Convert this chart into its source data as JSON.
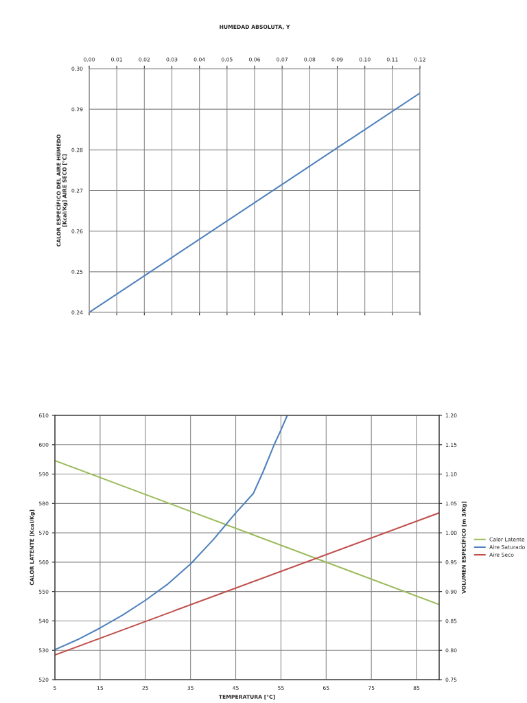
{
  "chart_data": [
    {
      "type": "line",
      "xlabel": "HUMEDAD ABSOLUTA, Y",
      "ylabel": "CALOR ESPECÍFICO DEL AIRE HÚMEDO\n[Kcal/Kg] AIRE SECO [°C]",
      "xlim": [
        0,
        0.12
      ],
      "xticks": [
        {
          "value": 0,
          "label": "0.00"
        },
        0.01,
        0.02,
        0.03,
        0.04,
        0.05,
        0.06,
        0.07,
        0.08,
        0.09,
        {
          "value": 0.1,
          "label": "0.10"
        },
        0.11,
        0.12
      ],
      "ylim": [
        0.24,
        0.3
      ],
      "yticks": [
        0.24,
        0.25,
        0.26,
        0.27,
        0.28,
        0.29,
        {
          "value": 0.3,
          "label": "0.30"
        }
      ],
      "grid": true,
      "legend": false,
      "marker": "none",
      "line_style": "solid",
      "series": [
        {
          "color": "#4f81bd",
          "x": [
            0,
            0.12
          ],
          "values": [
            0.24,
            0.294
          ]
        }
      ]
    },
    {
      "type": "line",
      "xlabel": "TEMPERATURA [°C]",
      "ylabel": "CALOR LATENTE [Kcal/Kg]",
      "y2label": "VOLUMEN ESPECÍFICO [m 3/Kg]",
      "xlim": [
        5,
        90
      ],
      "xticks": [
        5,
        15,
        25,
        35,
        45,
        55,
        65,
        75,
        85
      ],
      "ylim": [
        520,
        610
      ],
      "yticks": [
        520,
        530,
        540,
        550,
        560,
        570,
        580,
        590,
        600,
        610
      ],
      "y2lim": [
        0.75,
        1.2
      ],
      "y2ticks": [
        0.75,
        {
          "value": 0.8,
          "label": "0.80"
        },
        0.85,
        {
          "value": 0.9,
          "label": "0.90"
        },
        0.95,
        {
          "value": 1.0,
          "label": "1.00"
        },
        1.05,
        {
          "value": 1.1,
          "label": "1.10"
        },
        1.15,
        {
          "value": 1.2,
          "label": "1.20"
        }
      ],
      "grid": true,
      "legend": "right",
      "marker": "none",
      "line_style": "solid",
      "series": [
        {
          "name": "Calor Latente",
          "color": "#9bbb59",
          "x": [
            5,
            90
          ],
          "values": [
            594.6,
            545.6
          ]
        },
        {
          "name": "Aire Saturado",
          "color": "#4f81bd",
          "axis": "y2",
          "x": [
            5,
            10,
            15,
            20,
            25,
            30,
            35,
            40,
            44.9,
            48.9,
            51,
            53.5,
            55,
            56.4
          ],
          "values": [
            0.801,
            0.818,
            0.838,
            0.86,
            0.885,
            0.913,
            0.947,
            0.988,
            1.033,
            1.067,
            1.103,
            1.15,
            1.175,
            1.2
          ]
        },
        {
          "name": "Aire Seco",
          "color": "#c0504d",
          "axis": "y2",
          "x": [
            5,
            90
          ],
          "values": [
            0.792,
            1.034
          ]
        }
      ]
    }
  ]
}
